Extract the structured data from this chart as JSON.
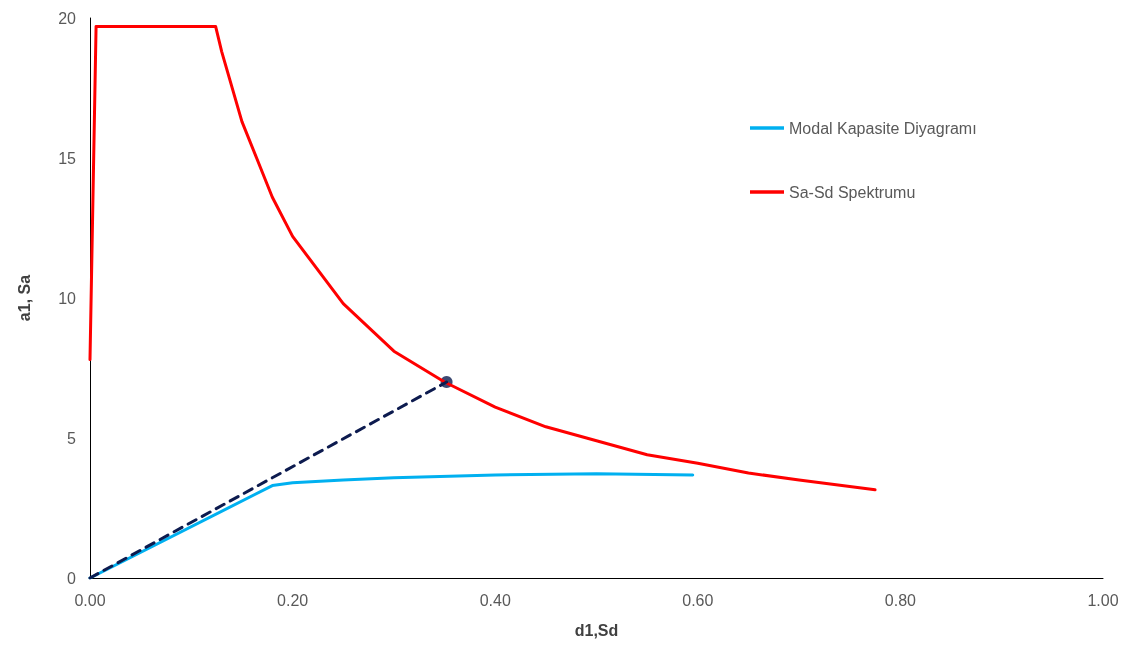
{
  "chart_data": {
    "type": "line",
    "xlabel": "d1,Sd",
    "ylabel": "a1, Sa",
    "xlim": [
      0,
      1
    ],
    "xticks": [
      {
        "value": 0,
        "label": "0.00"
      },
      {
        "value": 0.2,
        "label": "0.20"
      },
      {
        "value": 0.4,
        "label": "0.40"
      },
      {
        "value": 0.6,
        "label": "0.60"
      },
      {
        "value": 0.8,
        "label": "0.80"
      },
      {
        "value": 1,
        "label": "1.00"
      }
    ],
    "ylim": [
      0,
      20
    ],
    "yticks": [
      0,
      5,
      10,
      15,
      20
    ],
    "grid": false,
    "legend": "right",
    "marker": "none",
    "series": [
      {
        "name": "Modal Kapasite Diyagramı",
        "color": "#00b0f0",
        "x": [
          0,
          0.18,
          0.2,
          0.25,
          0.3,
          0.4,
          0.5,
          0.595
        ],
        "values": [
          0,
          3.3,
          3.4,
          3.5,
          3.58,
          3.68,
          3.72,
          3.68
        ]
      },
      {
        "name": "Sa-Sd Spektrumu",
        "color": "#ff0000",
        "x": [
          0,
          0.006,
          0.124,
          0.13,
          0.15,
          0.18,
          0.2,
          0.25,
          0.3,
          0.35,
          0.4,
          0.45,
          0.5,
          0.55,
          0.6,
          0.65,
          0.7,
          0.775
        ],
        "values": [
          7.8,
          19.7,
          19.7,
          18.8,
          16.3,
          13.6,
          12.2,
          9.8,
          8.1,
          7.0,
          6.1,
          5.4,
          4.9,
          4.4,
          4.1,
          3.75,
          3.5,
          3.15
        ]
      },
      {
        "color": "#0d1b4f",
        "line_style": "dashed",
        "x": [
          0,
          0.352
        ],
        "values": [
          0,
          7.0
        ]
      },
      {
        "type": "scatter",
        "color": "#0d1b4f",
        "marker": "circle",
        "x": [
          0.352
        ],
        "values": [
          7.0
        ]
      }
    ]
  }
}
